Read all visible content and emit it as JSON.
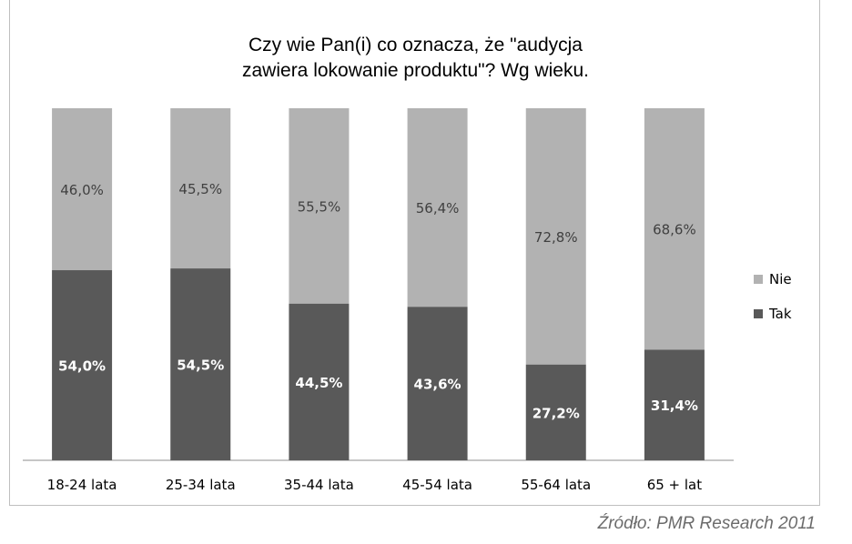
{
  "chart_data": {
    "type": "bar",
    "stacked": true,
    "title": [
      "Czy wie Pan(i) co oznacza,  że \"audycja",
      "zawiera lokowanie produktu\"? Wg wieku."
    ],
    "categories": [
      "18-24 lata",
      "25-34 lata",
      "35-44 lata",
      "45-54 lata",
      "55-64 lata",
      "65 + lat"
    ],
    "series": [
      {
        "name": "Tak",
        "values": [
          54.0,
          54.5,
          44.5,
          43.6,
          27.2,
          31.4
        ],
        "labels": [
          "54,0%",
          "54,5%",
          "44,5%",
          "43,6%",
          "27,2%",
          "31,4%"
        ],
        "color": "#595959"
      },
      {
        "name": "Nie",
        "values": [
          46.0,
          45.5,
          55.5,
          56.4,
          72.8,
          68.6
        ],
        "labels": [
          "46,0%",
          "45,5%",
          "55,5%",
          "56,4%",
          "72,8%",
          "68,6%"
        ],
        "color": "#b2b2b2"
      }
    ],
    "ylim": [
      0,
      100
    ],
    "legend_position": "right",
    "grid": false
  },
  "source": "Źródło: PMR Research 2011"
}
